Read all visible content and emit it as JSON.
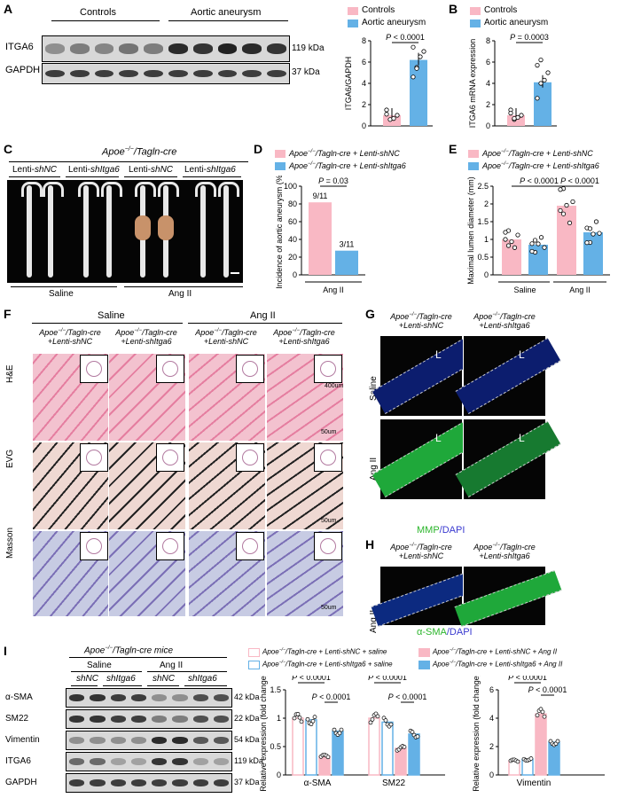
{
  "panels": {
    "A": "A",
    "B": "B",
    "C": "C",
    "D": "D",
    "E": "E",
    "F": "F",
    "G": "G",
    "H": "H",
    "I": "I"
  },
  "A": {
    "group1": "Controls",
    "group2": "Aortic aneurysm",
    "row1": "ITGA6",
    "row2": "GAPDH",
    "kda1": "119 kDa",
    "kda2": "37 kDa"
  },
  "legendAB": {
    "c": "Controls",
    "a": "Aortic aneurysm",
    "colorC": "#f9b8c4",
    "colorA": "#64b1e6"
  },
  "C": {
    "title_gene": "Apoe",
    "title_sup": "−/−",
    "title_rest": "/Tagln-cre",
    "lenti": "Lenti-",
    "shNC": "shNC",
    "shItga6": "shItga6",
    "saline": "Saline",
    "angii": "Ang II"
  },
  "legendDE": {
    "l1a": "Apoe",
    "l1b": "−/−",
    "l1c": "/Tagln-cre + Lenti-",
    "l1d": "shNC",
    "l2d": "shItga6"
  },
  "F": {
    "saline": "Saline",
    "angii": "Ang II",
    "g1": "Apoe",
    "g1b": "−/−",
    "g1c": "/Tagln-cre",
    "g2": "+Lenti-",
    "shNC": "shNC",
    "shItga6": "shItga6",
    "he": "H&E",
    "evg": "EVG",
    "masson": "Masson",
    "s400": "400um",
    "s50": "50um"
  },
  "G": {
    "saline": "Saline",
    "angii": "Ang II",
    "L": "L",
    "mmp": "MMP",
    "dapi": "/DAPI"
  },
  "H": {
    "angii": "Ang II",
    "sma": "α-SMA",
    "dapi": "/DAPI"
  },
  "I": {
    "title": "Apoe",
    "title_b": "−/−",
    "title_c": "/Tagln-cre mice",
    "saline": "Saline",
    "angii": "Ang II",
    "shNC": "shNC",
    "shItga6": "shItga6",
    "rows": [
      "α-SMA",
      "SM22",
      "Vimentin",
      "ITGA6",
      "GAPDH"
    ],
    "kda": [
      "42 kDa",
      "22 kDa",
      "54 kDa",
      "119 kDa",
      "37 kDa"
    ],
    "leg1": "+ Lenti-",
    "leg_s": "+ saline",
    "leg_a": "+ Ang II"
  },
  "chart_data": [
    {
      "panel": "A",
      "type": "bar",
      "categories": [
        "Controls",
        "Aortic aneurysm"
      ],
      "values": [
        1.0,
        6.2
      ],
      "ylabel": "ITGA6/GAPDH",
      "ylim": [
        0,
        8
      ],
      "yticks": [
        0,
        2,
        4,
        6,
        8
      ],
      "annotation": "P < 0.0001",
      "points": [
        [
          1.5,
          0.6,
          0.7,
          1.0,
          1.1
        ],
        [
          4.6,
          5.5,
          6.5,
          7.0,
          7.4,
          5.4
        ]
      ]
    },
    {
      "panel": "B",
      "type": "bar",
      "categories": [
        "Controls",
        "Aortic aneurysm"
      ],
      "values": [
        1.0,
        4.1
      ],
      "ylabel": "ITGA6 mRNA expression",
      "ylim": [
        0,
        8
      ],
      "yticks": [
        0,
        2,
        4,
        6,
        8
      ],
      "annotation": "P = 0.0003",
      "points": [
        [
          1.5,
          0.6,
          0.8,
          1.0,
          1.2,
          0.7
        ],
        [
          2.6,
          4.0,
          4.3,
          5.0,
          5.7,
          6.2
        ]
      ]
    },
    {
      "panel": "D",
      "type": "bar",
      "categories": [
        "shNC",
        "shItga6"
      ],
      "values": [
        81.8,
        27.3
      ],
      "ylabel": "Incidence of aortic aneurysm (%)",
      "xlabel": "Ang II",
      "ylim": [
        0,
        100
      ],
      "yticks": [
        0,
        20,
        40,
        60,
        80,
        100
      ],
      "annotation": "P = 0.03",
      "labels": [
        "9/11",
        "3/11"
      ]
    },
    {
      "panel": "E",
      "type": "bar",
      "categories": [
        "Saline shNC",
        "Saline shItga6",
        "Ang II shNC",
        "Ang II shItga6"
      ],
      "values": [
        1.0,
        0.85,
        1.95,
        1.2
      ],
      "ylabel": "Maximal lumen diameter (mm)",
      "ylim": [
        0,
        2.5
      ],
      "yticks": [
        0.0,
        0.5,
        1.0,
        1.5,
        2.0,
        2.5
      ],
      "annotations": [
        "P < 0.0001",
        "P < 0.0001"
      ]
    },
    {
      "panel": "I1",
      "type": "bar",
      "categories": [
        "α-SMA",
        "SM22"
      ],
      "series": [
        {
          "name": "shNC + saline",
          "values": [
            1.0,
            1.0
          ]
        },
        {
          "name": "shItga6 + saline",
          "values": [
            0.97,
            0.93
          ]
        },
        {
          "name": "shNC + Ang II",
          "values": [
            0.33,
            0.47
          ]
        },
        {
          "name": "shItga6 + Ang II",
          "values": [
            0.77,
            0.72
          ]
        }
      ],
      "ylabel": "Relative expression (fold change)",
      "ylim": [
        0,
        1.5
      ],
      "yticks": [
        0.0,
        0.5,
        1.0,
        1.5
      ],
      "annotations": [
        "P < 0.0001",
        "P < 0.0001",
        "P < 0.0001",
        "P < 0.0001"
      ]
    },
    {
      "panel": "I2",
      "type": "bar",
      "categories": [
        "Vimentin"
      ],
      "series": [
        {
          "name": "shNC + saline",
          "values": [
            1.0
          ]
        },
        {
          "name": "shItga6 + saline",
          "values": [
            1.1
          ]
        },
        {
          "name": "shNC + Ang II",
          "values": [
            4.3
          ]
        },
        {
          "name": "shItga6 + Ang II",
          "values": [
            2.3
          ]
        }
      ],
      "ylabel": "Relative expression (fold change)",
      "ylim": [
        0,
        6
      ],
      "yticks": [
        0,
        2,
        4,
        6
      ],
      "annotations": [
        "P < 0.0001",
        "P < 0.0001"
      ]
    }
  ]
}
